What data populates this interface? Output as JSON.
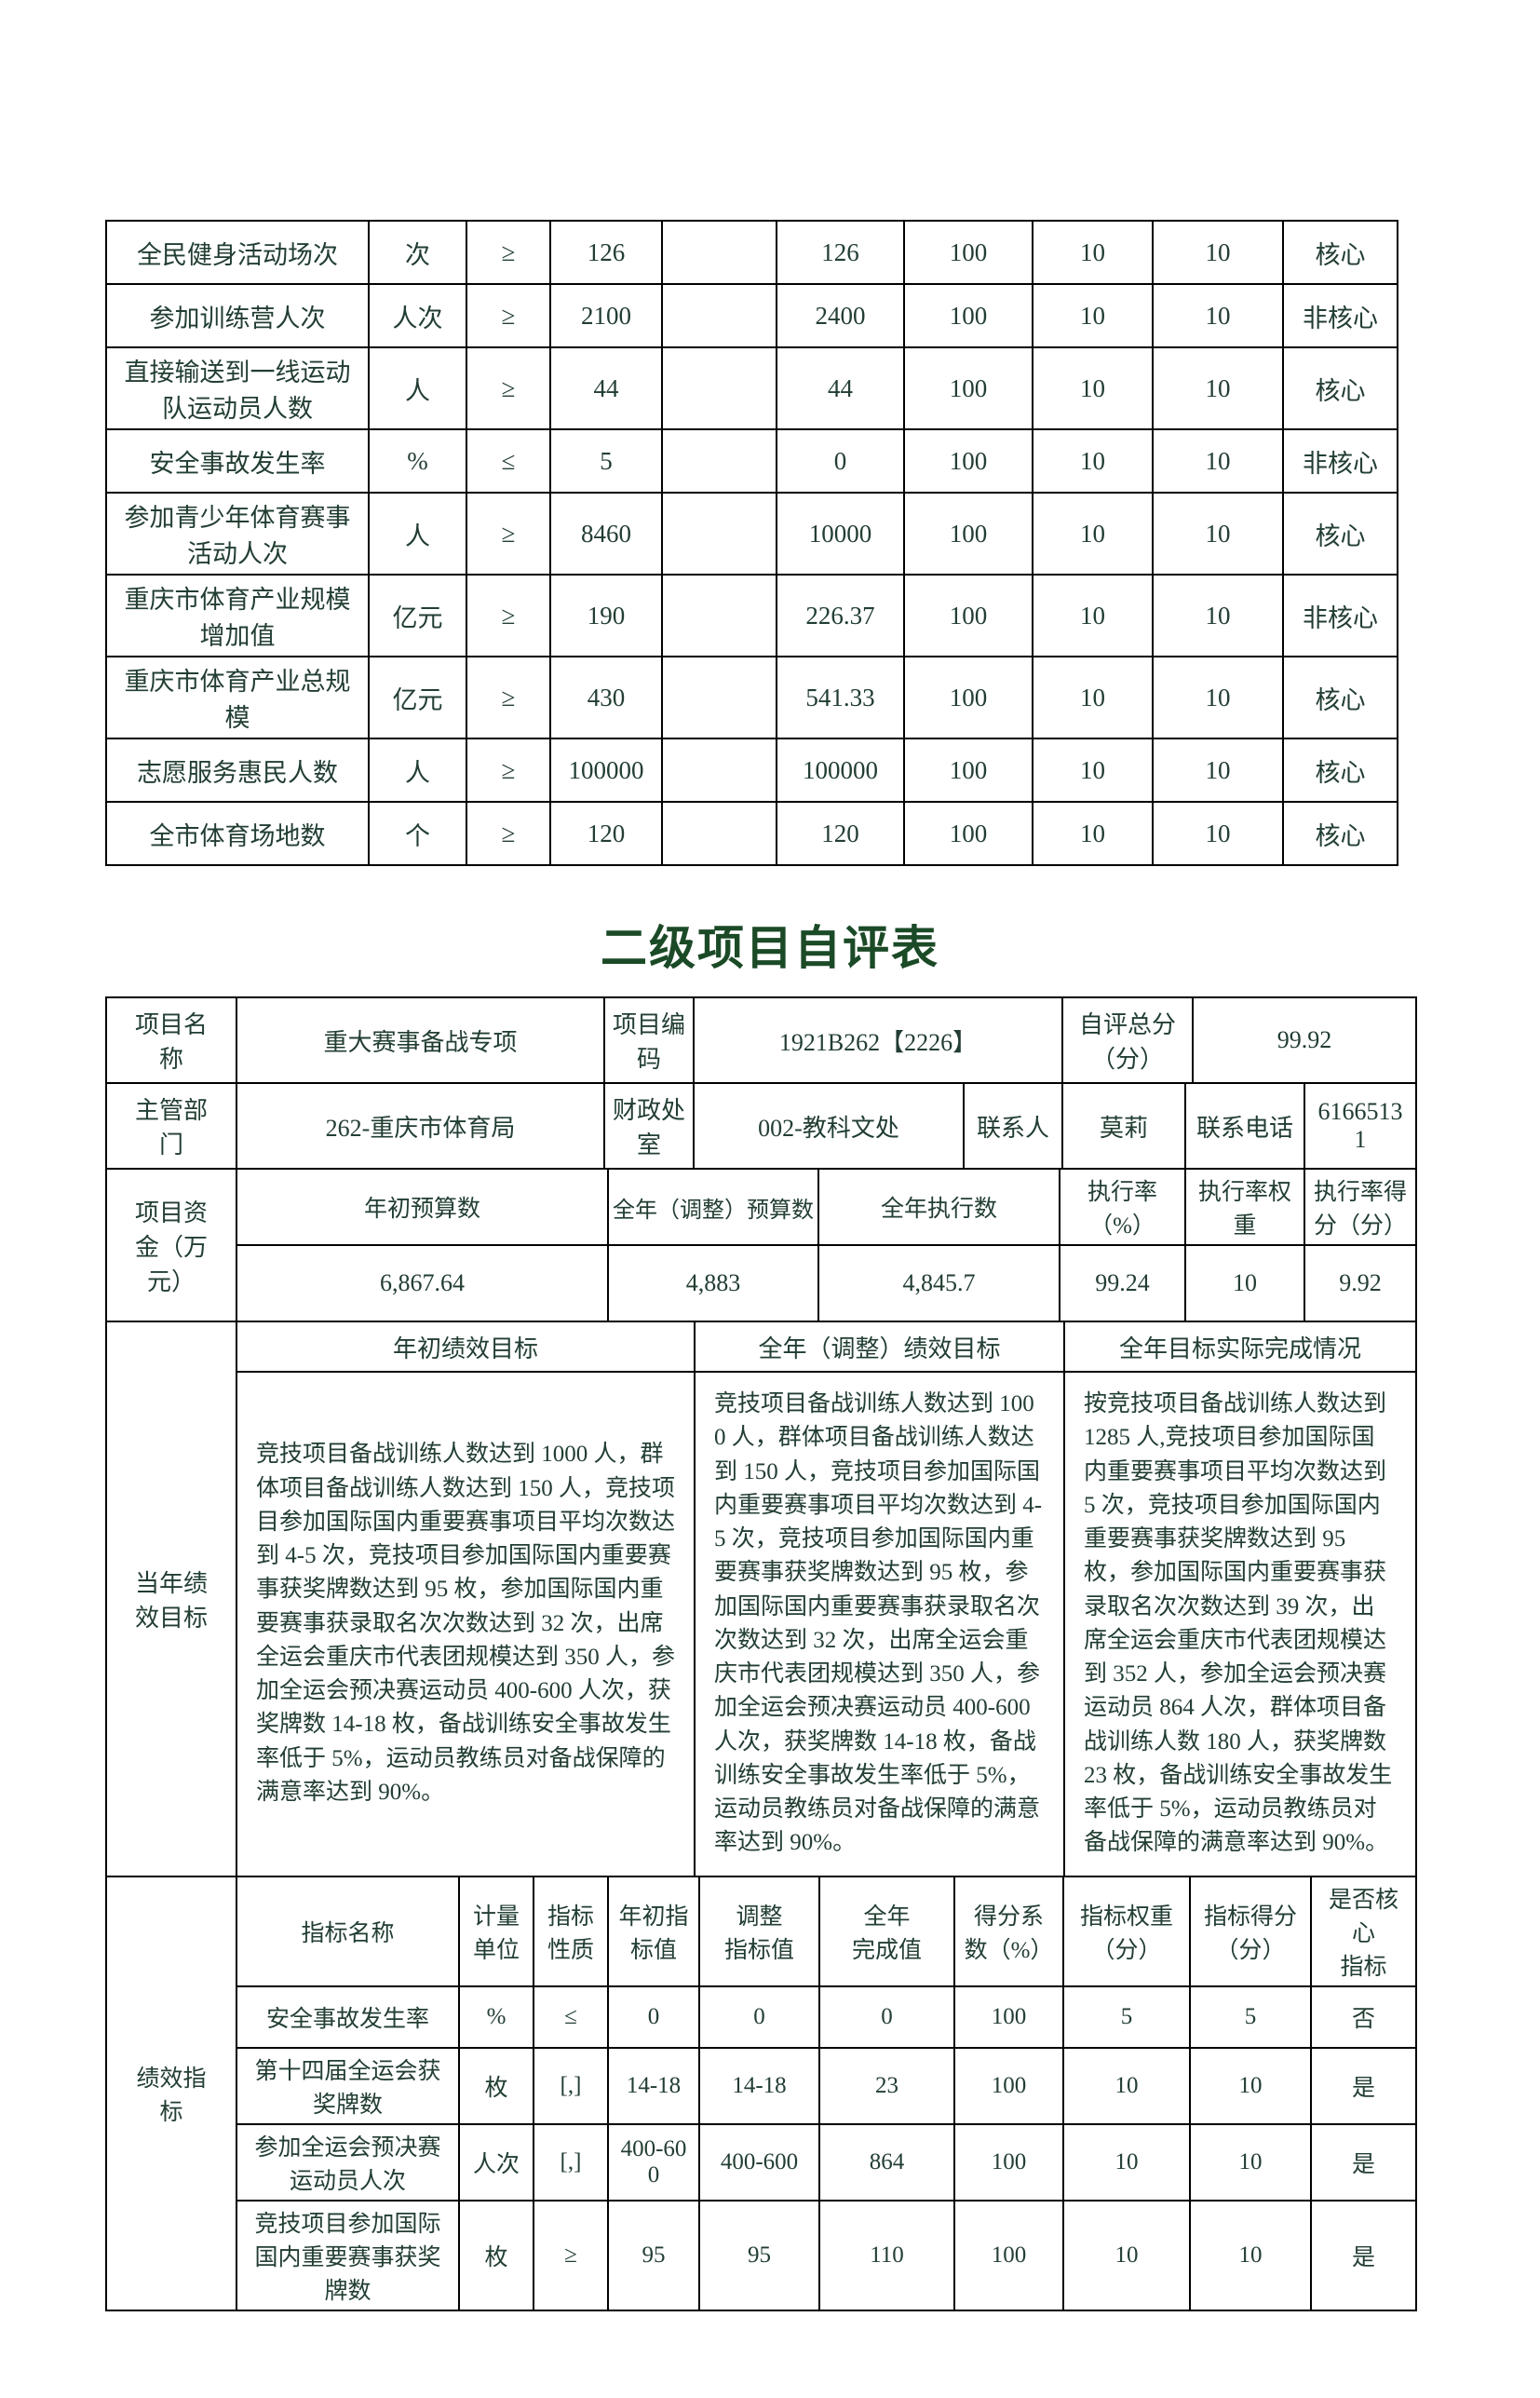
{
  "colors": {
    "text": "#223e32",
    "title": "#1b4a27",
    "border": "#000000",
    "background": "#ffffff"
  },
  "title": "二级项目自评表",
  "top_table": {
    "rows": [
      {
        "name": "全民健身活动场次",
        "unit": "次",
        "nature": "≥",
        "initial": "126",
        "adjusted": "",
        "completed": "126",
        "coefficient": "100",
        "weight": "10",
        "score": "10",
        "core": "核心"
      },
      {
        "name": "参加训练营人次",
        "unit": "人次",
        "nature": "≥",
        "initial": "2100",
        "adjusted": "",
        "completed": "2400",
        "coefficient": "100",
        "weight": "10",
        "score": "10",
        "core": "非核心"
      },
      {
        "name": "直接输送到一线运动队运动员人数",
        "unit": "人",
        "nature": "≥",
        "initial": "44",
        "adjusted": "",
        "completed": "44",
        "coefficient": "100",
        "weight": "10",
        "score": "10",
        "core": "核心"
      },
      {
        "name": "安全事故发生率",
        "unit": "%",
        "nature": "≤",
        "initial": "5",
        "adjusted": "",
        "completed": "0",
        "coefficient": "100",
        "weight": "10",
        "score": "10",
        "core": "非核心"
      },
      {
        "name": "参加青少年体育赛事活动人次",
        "unit": "人",
        "nature": "≥",
        "initial": "8460",
        "adjusted": "",
        "completed": "10000",
        "coefficient": "100",
        "weight": "10",
        "score": "10",
        "core": "核心"
      },
      {
        "name": "重庆市体育产业规模增加值",
        "unit": "亿元",
        "nature": "≥",
        "initial": "190",
        "adjusted": "",
        "completed": "226.37",
        "coefficient": "100",
        "weight": "10",
        "score": "10",
        "core": "非核心"
      },
      {
        "name": "重庆市体育产业总规模",
        "unit": "亿元",
        "nature": "≥",
        "initial": "430",
        "adjusted": "",
        "completed": "541.33",
        "coefficient": "100",
        "weight": "10",
        "score": "10",
        "core": "核心"
      },
      {
        "name": "志愿服务惠民人数",
        "unit": "人",
        "nature": "≥",
        "initial": "100000",
        "adjusted": "",
        "completed": "100000",
        "coefficient": "100",
        "weight": "10",
        "score": "10",
        "core": "核心"
      },
      {
        "name": "全市体育场地数",
        "unit": "个",
        "nature": "≥",
        "initial": "120",
        "adjusted": "",
        "completed": "120",
        "coefficient": "100",
        "weight": "10",
        "score": "10",
        "core": "核心"
      }
    ]
  },
  "info": {
    "name_label": "项目名\n称",
    "name_value": "重大赛事备战专项",
    "code_label": "项目编\n码",
    "code_value": "1921B262【2226】",
    "self_score_label": "自评总分\n（分）",
    "self_score_value": "99.92",
    "dept_label": "主管部\n门",
    "dept_value": "262-重庆市体育局",
    "finance_label": "财政处\n室",
    "finance_value": "002-教科文处",
    "contact_label": "联系人",
    "contact_value": "莫莉",
    "phone_label": "联系电话",
    "phone_value": "61665131"
  },
  "funds": {
    "label": "项目资\n金（万\n元）",
    "headers": [
      "年初预算数",
      "全年（调整）预算数",
      "全年执行数",
      "执行率\n（%）",
      "执行率权\n重",
      "执行率得\n分（分）"
    ],
    "values": [
      "6,867.64",
      "4,883",
      "4,845.7",
      "99.24",
      "10",
      "9.92"
    ]
  },
  "goals": {
    "label": "当年绩\n效目标",
    "headers": [
      "年初绩效目标",
      "全年（调整）绩效目标",
      "全年目标实际完成情况"
    ],
    "initial": "竞技项目备战训练人数达到 1000 人，群体项目备战训练人数达到 150 人，竞技项目参加国际国内重要赛事项目平均次数达到 4-5 次，竞技项目参加国际国内重要赛事获奖牌数达到 95 枚，参加国际国内重要赛事获录取名次次数达到 32 次，出席全运会重庆市代表团规模达到 350 人，参加全运会预决赛运动员 400-600 人次，获奖牌数 14-18 枚，备战训练安全事故发生率低于 5%，运动员教练员对备战保障的满意率达到 90%。",
    "adjusted": "竞技项目备战训练人数达到 1000 人，群体项目备战训练人数达到 150 人，竞技项目参加国际国内重要赛事项目平均次数达到 4-5 次，竞技项目参加国际国内重要赛事获奖牌数达到 95 枚，参加国际国内重要赛事获录取名次次数达到 32 次，出席全运会重庆市代表团规模达到 350 人，参加全运会预决赛运动员 400-600 人次，获奖牌数 14-18 枚，备战训练安全事故发生率低于 5%，运动员教练员对备战保障的满意率达到 90%。",
    "actual": "按竞技项目备战训练人数达到 1285 人,竞技项目参加国际国内重要赛事项目平均次数达到 5 次，竞技项目参加国际国内重要赛事获奖牌数达到 95 枚，参加国际国内重要赛事获录取名次次数达到 39 次，出席全运会重庆市代表团规模达到 352 人，参加全运会预决赛运动员 864 人次，群体项目备战训练人数 180 人，获奖牌数 23 枚，备战训练安全事故发生率低于 5%，运动员教练员对备战保障的满意率达到 90%。"
  },
  "indicators": {
    "label": "绩效指\n标",
    "headers": [
      "指标名称",
      "计量\n单位",
      "指标\n性质",
      "年初指\n标值",
      "调整\n指标值",
      "全年\n完成值",
      "得分系\n数（%）",
      "指标权重\n（分）",
      "指标得分\n（分）",
      "是否核心\n指标"
    ],
    "rows": [
      [
        "安全事故发生率",
        "%",
        "≤",
        "0",
        "0",
        "0",
        "100",
        "5",
        "5",
        "否"
      ],
      [
        "第十四届全运会获奖牌数",
        "枚",
        "[,]",
        "14-18",
        "14-18",
        "23",
        "100",
        "10",
        "10",
        "是"
      ],
      [
        "参加全运会预决赛运动员人次",
        "人次",
        "[,]",
        "400-600",
        "400-600",
        "864",
        "100",
        "10",
        "10",
        "是"
      ],
      [
        "竞技项目参加国际国内重要赛事获奖牌数",
        "枚",
        "≥",
        "95",
        "95",
        "110",
        "100",
        "10",
        "10",
        "是"
      ]
    ]
  }
}
